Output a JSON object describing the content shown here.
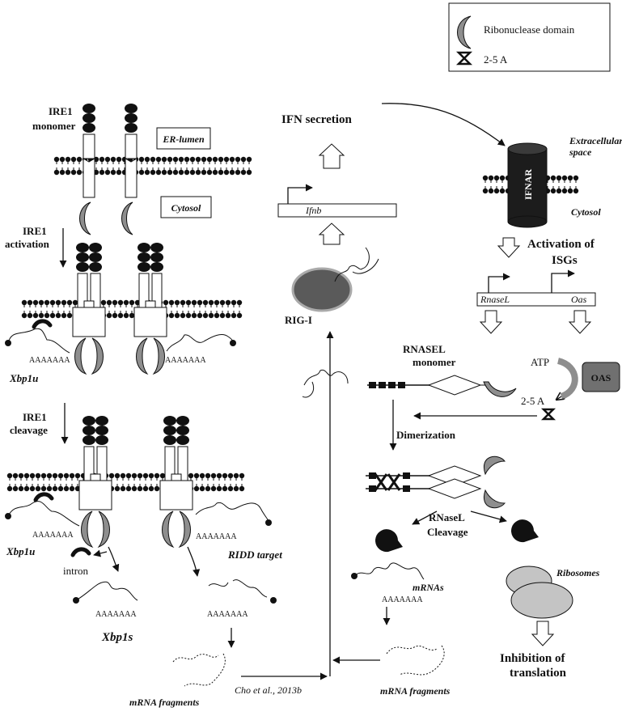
{
  "legend": {
    "ribonuclease": "Ribonuclease domain",
    "two_five_a": "2-5 A"
  },
  "labels": {
    "ire1_monomer_1": "IRE1",
    "ire1_monomer_2": "monomer",
    "er_lumen": "ER-lumen",
    "cytosol_left": "Cytosol",
    "ire1_activation_1": "IRE1",
    "ire1_activation_2": "activation",
    "poly_a": "AAAAAAA",
    "xbp1u": "Xbp1u",
    "ire1_cleavage_1": "IRE1",
    "ire1_cleavage_2": "cleavage",
    "intron": "intron",
    "ridd_target": "RIDD target",
    "xbp1s": "Xbp1s",
    "mrna_fragments": "mRNA fragments",
    "citation": "Cho et al., 2013b",
    "ifn_secretion": "IFN secretion",
    "ifnb": "Ifnb",
    "rig_i": "RIG-I",
    "extracellular_1": "Extracellular",
    "extracellular_2": "space",
    "ifnar": "IFNAR",
    "cytosol_right": "Cytosol",
    "activation_isgs_1": "Activation of",
    "activation_isgs_2": "ISGs",
    "rnasel_gene": "RnaseL",
    "oas_gene": "Oas",
    "rnasel_monomer_1": "RNASEL",
    "rnasel_monomer_2": "monomer",
    "atp": "ATP",
    "oas_box": "OAS",
    "two_five_a": "2-5 A",
    "dimerization": "Dimerization",
    "rnasel_cleavage_1": "RNaseL",
    "rnasel_cleavage_2": "Cleavage",
    "mrnas": "mRNAs",
    "ribosomes": "Ribosomes",
    "inhibition_1": "Inhibition of",
    "inhibition_2": "translation"
  },
  "colors": {
    "ink": "#111111",
    "rig_i_fill": "#5a5a5a",
    "oas_fill": "#707070",
    "ribosome_fill": "#c4c4c4",
    "ribonuclease_fill": "#8e8e8e",
    "ifnar_fill": "#1c1c1c"
  }
}
